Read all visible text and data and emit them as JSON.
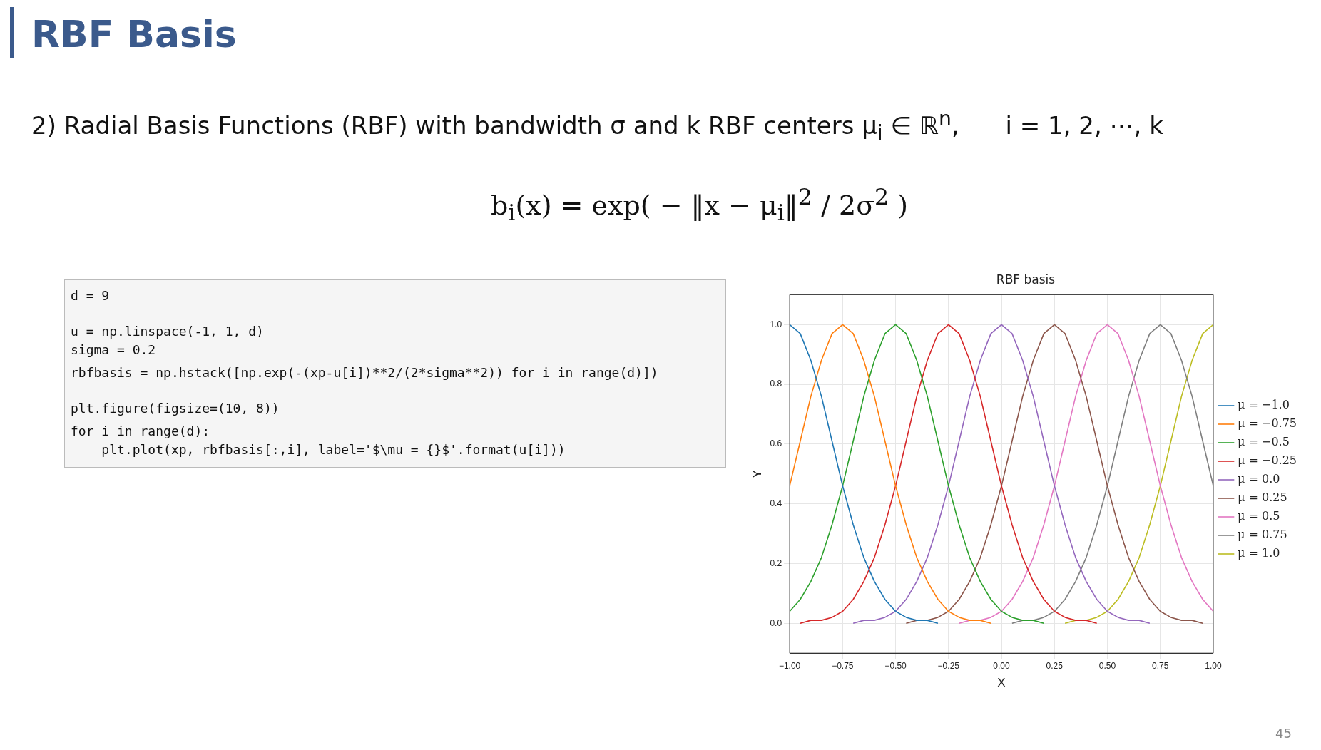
{
  "chart_data": {
    "type": "line",
    "title": "RBF basis",
    "xlabel": "X",
    "ylabel": "Y",
    "annotations": [
      "RBF Basis",
      "2) Radial Basis Functions (RBF) with bandwidth σ and k RBF centers μ$_{i}$ ∈ ℝ$^{n}$,      i = 1, 2, ⋯, k",
      "b$_{i}$(x) = exp( − ‖x − μ$_{i}$‖$^{2}$ / 2σ$^{2}$ )",
      "d = 9",
      "u = np.linspace(-1, 1, d)",
      "sigma = 0.2",
      "rbfbasis = np.hstack([np.exp(-(xp-u[i])**2/(2*sigma**2)) for i in range(d)])",
      "plt.figure(figsize=(10, 8))",
      "for i in range(d):",
      "    plt.plot(xp, rbfbasis[:,i], label='$\\mu = {}$'.format(u[i]))",
      "45"
    ],
    "x": [
      -1,
      -0.95,
      -0.9,
      -0.85,
      -0.8,
      -0.75,
      -0.7,
      -0.65,
      -0.6,
      -0.55,
      -0.5,
      -0.45,
      -0.4,
      -0.35,
      -0.3,
      -0.25,
      -0.2,
      -0.15,
      -0.1,
      -0.05,
      0,
      0.05,
      0.1,
      0.15,
      0.2,
      0.25,
      0.3,
      0.35,
      0.4,
      0.45,
      0.5,
      0.55,
      0.6,
      0.65,
      0.7,
      0.75,
      0.8,
      0.85,
      0.9,
      0.95,
      1
    ],
    "series": [
      {
        "name": "μ = −1.0",
        "color": "#1f77b4",
        "values": [
          1,
          0.97,
          0.88,
          0.76,
          0.61,
          0.46,
          0.33,
          0.22,
          0.14,
          0.08,
          0.04,
          0.02,
          0.01,
          0.01,
          0,
          null,
          null,
          null,
          null,
          null,
          null,
          null,
          null,
          null,
          null,
          null,
          null,
          null,
          null,
          null,
          null,
          null,
          null,
          null,
          null,
          null,
          null,
          null,
          null,
          null,
          null
        ]
      },
      {
        "name": "μ = −0.75",
        "color": "#ff7f0e",
        "values": [
          0.46,
          0.61,
          0.76,
          0.88,
          0.97,
          1,
          0.97,
          0.88,
          0.76,
          0.61,
          0.46,
          0.33,
          0.22,
          0.14,
          0.08,
          0.04,
          0.02,
          0.01,
          0.01,
          0,
          null,
          null,
          null,
          null,
          null,
          null,
          null,
          null,
          null,
          null,
          null,
          null,
          null,
          null,
          null,
          null,
          null,
          null,
          null,
          null,
          null
        ]
      },
      {
        "name": "μ = −0.5",
        "color": "#2ca02c",
        "values": [
          0.04,
          0.08,
          0.14,
          0.22,
          0.33,
          0.46,
          0.61,
          0.76,
          0.88,
          0.97,
          1,
          0.97,
          0.88,
          0.76,
          0.61,
          0.46,
          0.33,
          0.22,
          0.14,
          0.08,
          0.04,
          0.02,
          0.01,
          0.01,
          0,
          null,
          null,
          null,
          null,
          null,
          null,
          null,
          null,
          null,
          null,
          null,
          null,
          null,
          null,
          null,
          null
        ]
      },
      {
        "name": "μ = −0.25",
        "color": "#d62728",
        "values": [
          null,
          0,
          0.01,
          0.01,
          0.02,
          0.04,
          0.08,
          0.14,
          0.22,
          0.33,
          0.46,
          0.61,
          0.76,
          0.88,
          0.97,
          1,
          0.97,
          0.88,
          0.76,
          0.61,
          0.46,
          0.33,
          0.22,
          0.14,
          0.08,
          0.04,
          0.02,
          0.01,
          0.01,
          0,
          null,
          null,
          null,
          null,
          null,
          null,
          null,
          null,
          null,
          null,
          null
        ]
      },
      {
        "name": "μ = 0.0",
        "color": "#9467bd",
        "values": [
          null,
          null,
          null,
          null,
          null,
          null,
          0,
          0.01,
          0.01,
          0.02,
          0.04,
          0.08,
          0.14,
          0.22,
          0.33,
          0.46,
          0.61,
          0.76,
          0.88,
          0.97,
          1,
          0.97,
          0.88,
          0.76,
          0.61,
          0.46,
          0.33,
          0.22,
          0.14,
          0.08,
          0.04,
          0.02,
          0.01,
          0.01,
          0,
          null,
          null,
          null,
          null,
          null,
          null
        ]
      },
      {
        "name": "μ = 0.25",
        "color": "#8c564b",
        "values": [
          null,
          null,
          null,
          null,
          null,
          null,
          null,
          null,
          null,
          null,
          null,
          0,
          0.01,
          0.01,
          0.02,
          0.04,
          0.08,
          0.14,
          0.22,
          0.33,
          0.46,
          0.61,
          0.76,
          0.88,
          0.97,
          1,
          0.97,
          0.88,
          0.76,
          0.61,
          0.46,
          0.33,
          0.22,
          0.14,
          0.08,
          0.04,
          0.02,
          0.01,
          0.01,
          0,
          null
        ]
      },
      {
        "name": "μ = 0.5",
        "color": "#e377c2",
        "values": [
          null,
          null,
          null,
          null,
          null,
          null,
          null,
          null,
          null,
          null,
          null,
          null,
          null,
          null,
          null,
          null,
          0,
          0.01,
          0.01,
          0.02,
          0.04,
          0.08,
          0.14,
          0.22,
          0.33,
          0.46,
          0.61,
          0.76,
          0.88,
          0.97,
          1,
          0.97,
          0.88,
          0.76,
          0.61,
          0.46,
          0.33,
          0.22,
          0.14,
          0.08,
          0.04
        ]
      },
      {
        "name": "μ = 0.75",
        "color": "#7f7f7f",
        "values": [
          null,
          null,
          null,
          null,
          null,
          null,
          null,
          null,
          null,
          null,
          null,
          null,
          null,
          null,
          null,
          null,
          null,
          null,
          null,
          null,
          null,
          0,
          0.01,
          0.01,
          0.02,
          0.04,
          0.08,
          0.14,
          0.22,
          0.33,
          0.46,
          0.61,
          0.76,
          0.88,
          0.97,
          1,
          0.97,
          0.88,
          0.76,
          0.61,
          0.46
        ]
      },
      {
        "name": "μ = 1.0",
        "color": "#bcbd22",
        "values": [
          null,
          null,
          null,
          null,
          null,
          null,
          null,
          null,
          null,
          null,
          null,
          null,
          null,
          null,
          null,
          null,
          null,
          null,
          null,
          null,
          null,
          null,
          null,
          null,
          null,
          null,
          0,
          0.01,
          0.01,
          0.02,
          0.04,
          0.08,
          0.14,
          0.22,
          0.33,
          0.46,
          0.61,
          0.76,
          0.88,
          0.97,
          1
        ]
      }
    ],
    "xlim": [
      -1,
      1
    ],
    "xticks": [
      {
        "value": -1,
        "label": "−1.00"
      },
      {
        "value": -0.75,
        "label": "−0.75"
      },
      {
        "value": -0.5,
        "label": "−0.50"
      },
      {
        "value": -0.25,
        "label": "−0.25"
      },
      {
        "value": 0,
        "label": "0.00"
      },
      {
        "value": 0.25,
        "label": "0.25"
      },
      {
        "value": 0.5,
        "label": "0.50"
      },
      {
        "value": 0.75,
        "label": "0.75"
      },
      {
        "value": 1,
        "label": "1.00"
      }
    ],
    "ylim": [
      -0.1,
      1.1
    ],
    "yticks": [
      {
        "value": 0,
        "label": "0.0"
      },
      {
        "value": 0.2,
        "label": "0.2"
      },
      {
        "value": 0.4,
        "label": "0.4"
      },
      {
        "value": 0.6,
        "label": "0.6"
      },
      {
        "value": 0.8,
        "label": "0.8"
      },
      {
        "value": 1,
        "label": "1.0"
      }
    ],
    "grid": true,
    "legend": "right",
    "marker": "none",
    "line_style": "solid"
  }
}
